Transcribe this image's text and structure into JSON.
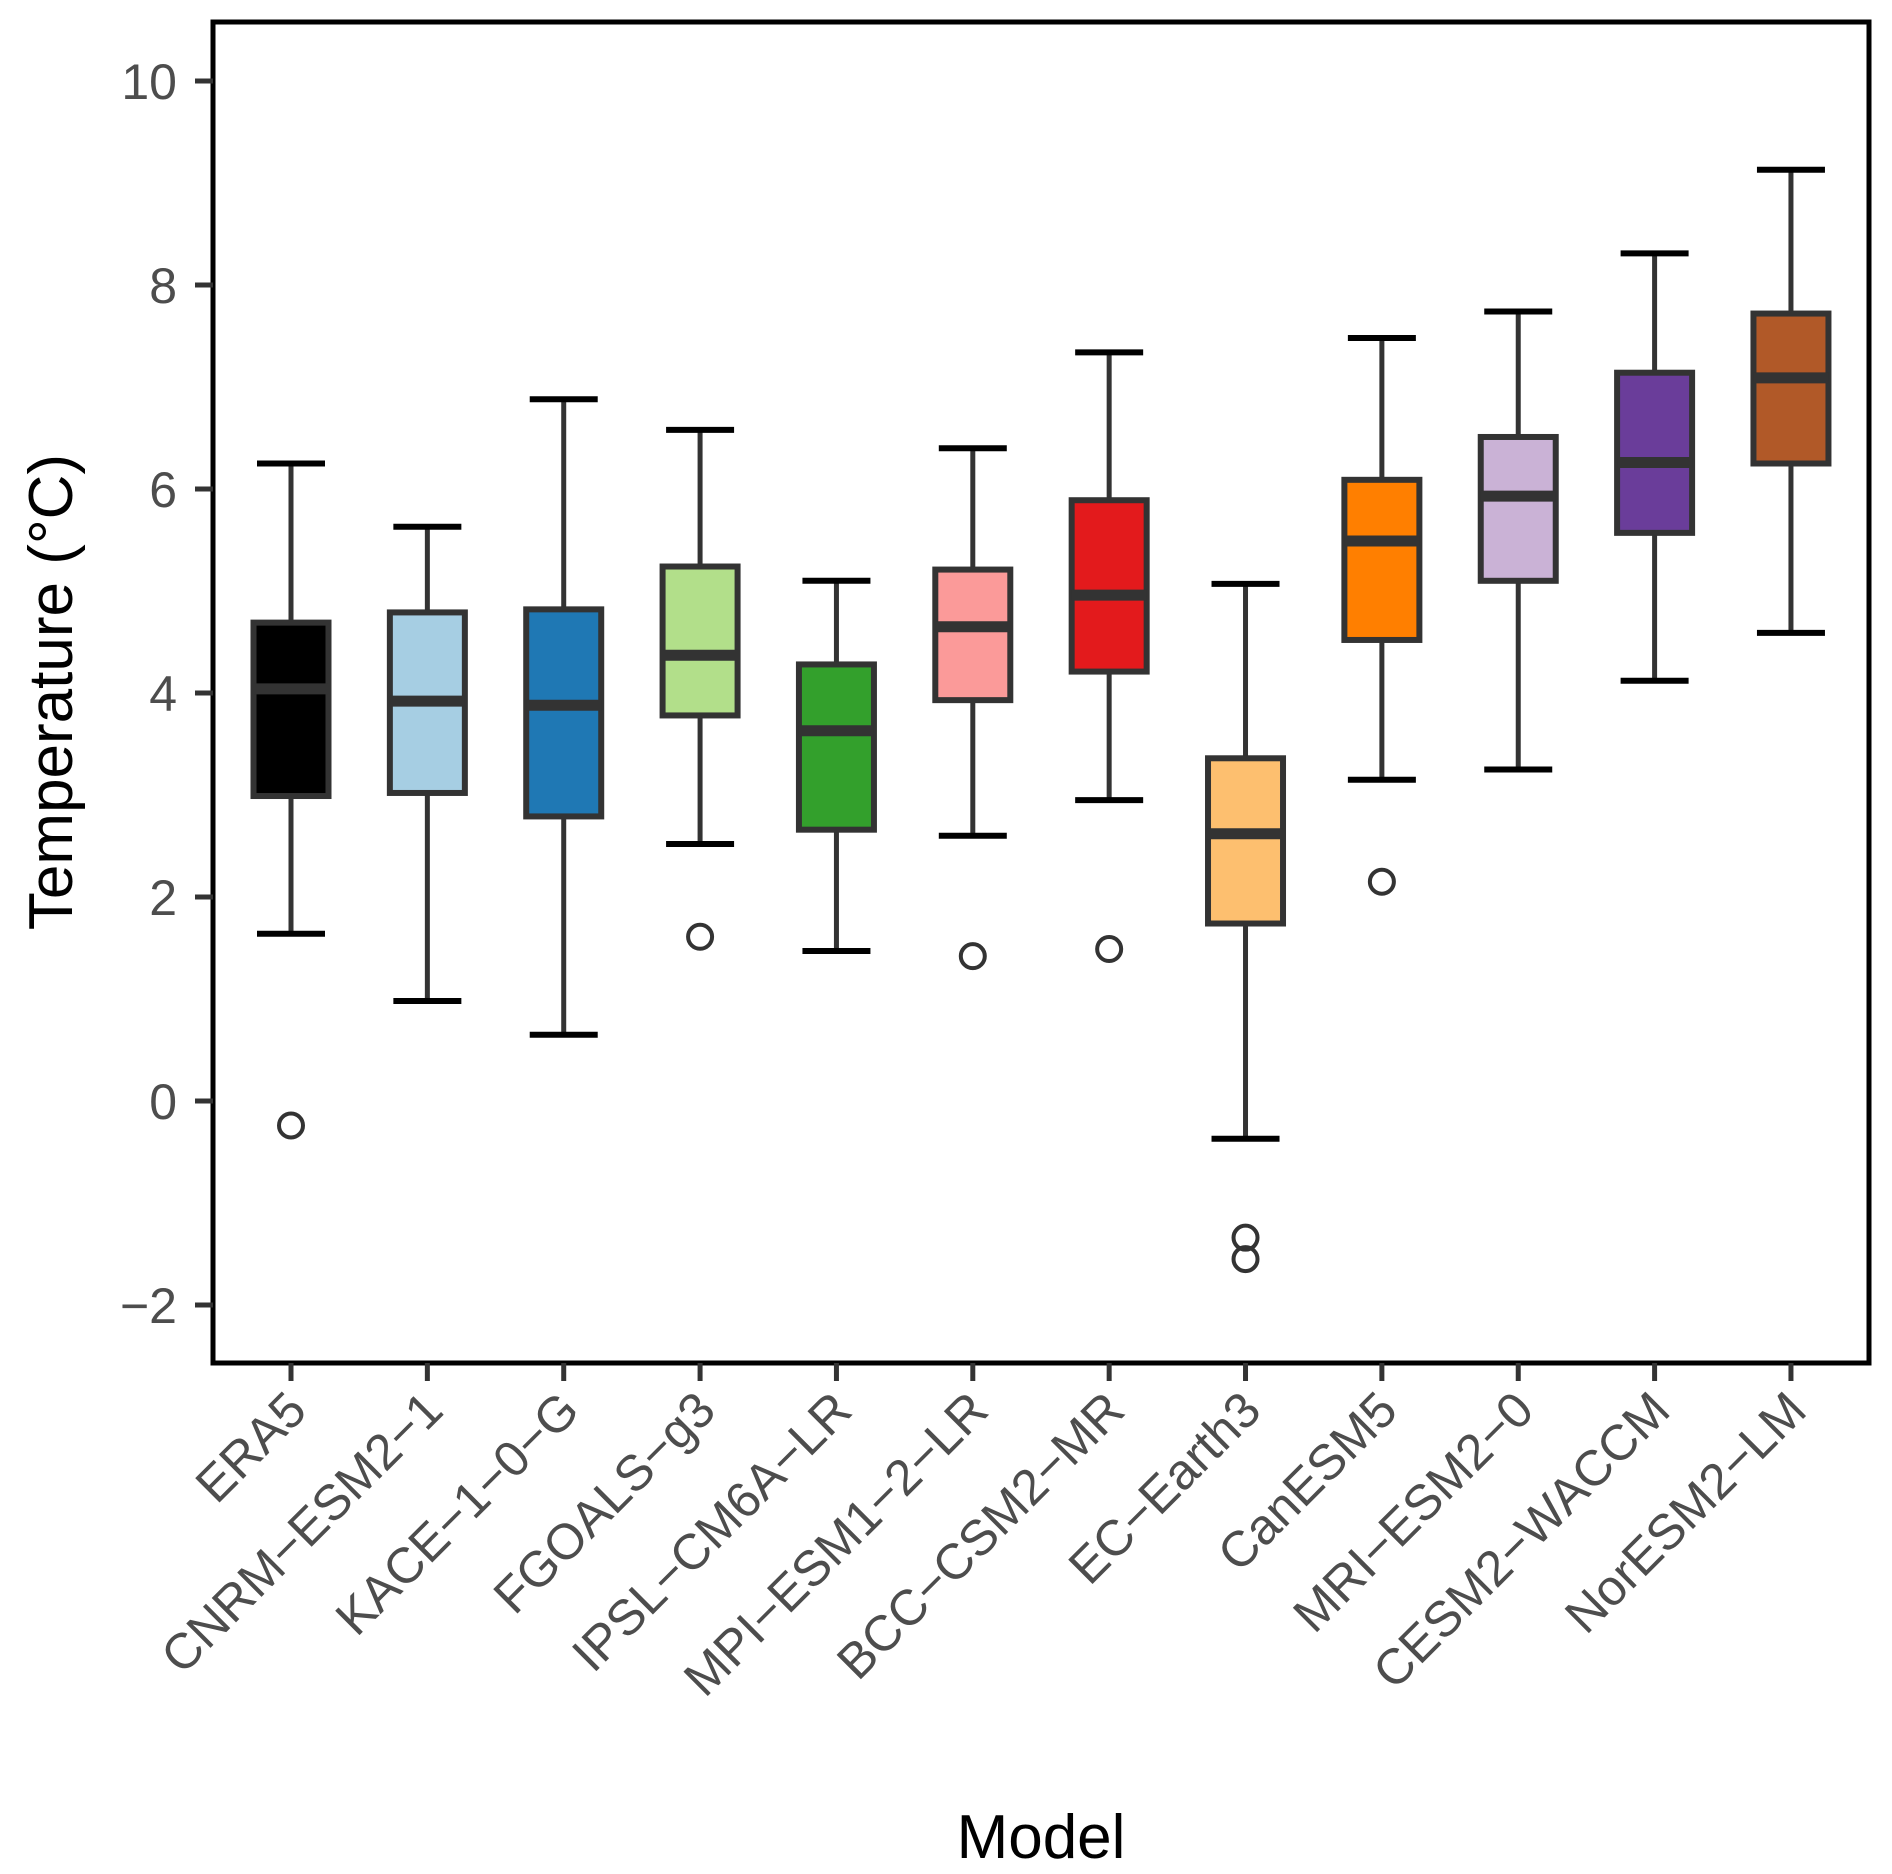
{
  "chart_data": {
    "type": "boxplot",
    "title": "",
    "xlabel": "Model",
    "ylabel": "Temperature (°C)",
    "ylim": [
      -2.6,
      10.6
    ],
    "yticks": [
      -2,
      0,
      2,
      4,
      6,
      8,
      10
    ],
    "ytick_labels": [
      "−2",
      "0",
      "2",
      "4",
      "6",
      "8",
      "10"
    ],
    "grid": false,
    "legend": "none",
    "categories": [
      "ERA5",
      "CNRM−ESM2−1",
      "KACE−1−0−G",
      "FGOALS−g3",
      "IPSL−CM6A−LR",
      "MPI−ESM1−2−LR",
      "BCC−CSM2−MR",
      "EC−Earth3",
      "CanESM5",
      "MRI−ESM2−0",
      "CESM2−WACCM",
      "NorESM2−LM"
    ],
    "series": [
      {
        "name": "ERA5",
        "color": "#000000",
        "whisker_low": 1.64,
        "q1": 2.99,
        "median": 4.04,
        "q3": 4.69,
        "whisker_high": 6.25,
        "outliers": [
          -0.24
        ]
      },
      {
        "name": "CNRM-ESM2-1",
        "color": "#A6CEE3",
        "whisker_low": 0.98,
        "q1": 3.02,
        "median": 3.92,
        "q3": 4.79,
        "whisker_high": 5.63,
        "outliers": []
      },
      {
        "name": "KACE-1-0-G",
        "color": "#1F78B4",
        "whisker_low": 0.65,
        "q1": 2.79,
        "median": 3.88,
        "q3": 4.82,
        "whisker_high": 6.88,
        "outliers": []
      },
      {
        "name": "FGOALS-g3",
        "color": "#B2DF8A",
        "whisker_low": 2.52,
        "q1": 3.78,
        "median": 4.37,
        "q3": 5.24,
        "whisker_high": 6.58,
        "outliers": [
          1.61
        ]
      },
      {
        "name": "IPSL-CM6A-LR",
        "color": "#33A02C",
        "whisker_low": 1.47,
        "q1": 2.66,
        "median": 3.63,
        "q3": 4.28,
        "whisker_high": 5.1,
        "outliers": []
      },
      {
        "name": "MPI-ESM1-2-LR",
        "color": "#FB9A99",
        "whisker_low": 2.6,
        "q1": 3.93,
        "median": 4.65,
        "q3": 5.21,
        "whisker_high": 6.4,
        "outliers": [
          1.42
        ]
      },
      {
        "name": "BCC-CSM2-MR",
        "color": "#E31A1C",
        "whisker_low": 2.95,
        "q1": 4.21,
        "median": 4.96,
        "q3": 5.89,
        "whisker_high": 7.34,
        "outliers": [
          1.49
        ]
      },
      {
        "name": "EC-Earth3",
        "color": "#FDBF6F",
        "whisker_low": -0.37,
        "q1": 1.74,
        "median": 2.62,
        "q3": 3.36,
        "whisker_high": 5.07,
        "outliers": [
          -1.34,
          -1.55
        ]
      },
      {
        "name": "CanESM5",
        "color": "#FF7F00",
        "whisker_low": 3.15,
        "q1": 4.52,
        "median": 5.49,
        "q3": 6.09,
        "whisker_high": 7.48,
        "outliers": [
          2.15
        ]
      },
      {
        "name": "MRI-ESM2-0",
        "color": "#CAB2D6",
        "whisker_low": 3.25,
        "q1": 5.1,
        "median": 5.93,
        "q3": 6.51,
        "whisker_high": 7.74,
        "outliers": []
      },
      {
        "name": "CESM2-WACCM",
        "color": "#6A3D9A",
        "whisker_low": 4.12,
        "q1": 5.57,
        "median": 6.26,
        "q3": 7.14,
        "whisker_high": 8.31,
        "outliers": []
      },
      {
        "name": "NorESM2-LM",
        "color": "#B15928",
        "whisker_low": 4.59,
        "q1": 6.25,
        "median": 7.09,
        "q3": 7.72,
        "whisker_high": 9.13,
        "outliers": []
      }
    ]
  }
}
